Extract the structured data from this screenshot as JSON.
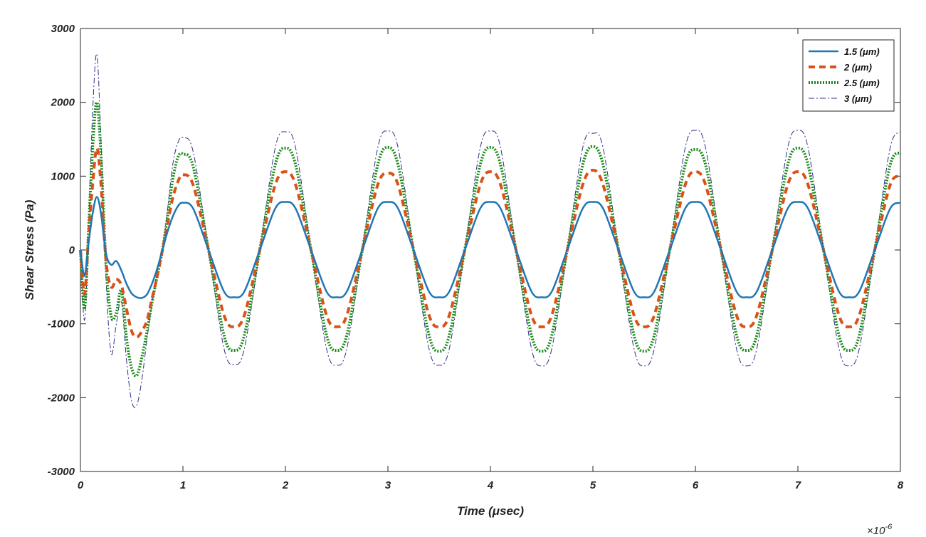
{
  "chart_data": {
    "type": "line",
    "title": "",
    "xlabel": "Time (μsec)",
    "ylabel": "Shear Stress (Pa)",
    "x_multiplier": "×10",
    "x_multiplier_exp": "-6",
    "xlim": [
      0,
      8
    ],
    "ylim": [
      -3000,
      3000
    ],
    "xticks": [
      "0",
      "1",
      "2",
      "3",
      "4",
      "5",
      "6",
      "7",
      "8"
    ],
    "yticks": [
      "3000",
      "2000",
      "1000",
      "0",
      "-1000",
      "-2000",
      "-3000"
    ],
    "grid": false,
    "legend_position": "top-right",
    "series": [
      {
        "name": "1.5 (μm)",
        "color": "#1f77b4",
        "style": "solid",
        "x": [
          0,
          0.04,
          0.08,
          0.12,
          0.16,
          0.2,
          0.25,
          0.3,
          0.35,
          0.4,
          0.45,
          0.5,
          0.55,
          0.6,
          0.65,
          0.7,
          0.75,
          0.8,
          0.85,
          0.9,
          0.95,
          1.0,
          1.1,
          1.25,
          1.4,
          1.5,
          1.6,
          1.75,
          1.9,
          2.0,
          2.1,
          2.25,
          2.4,
          2.5,
          2.6,
          2.75,
          2.9,
          3.0,
          3.1,
          3.25,
          3.4,
          3.5,
          3.6,
          3.75,
          3.9,
          4.0,
          4.1,
          4.25,
          4.4,
          4.5,
          4.6,
          4.75,
          4.9,
          5.0,
          5.1,
          5.25,
          5.4,
          5.5,
          5.6,
          5.75,
          5.9,
          6.0,
          6.1,
          6.25,
          6.4,
          6.5,
          6.6,
          6.75,
          6.9,
          7.0,
          7.1,
          7.25,
          7.4,
          7.5,
          7.6,
          7.75,
          7.9,
          8.0
        ],
        "y": [
          0,
          -350,
          100,
          500,
          720,
          500,
          -50,
          -200,
          -150,
          -280,
          -460,
          -590,
          -640,
          -650,
          -600,
          -450,
          -250,
          0,
          250,
          450,
          590,
          640,
          560,
          0,
          -560,
          -640,
          -560,
          0,
          560,
          650,
          560,
          0,
          -560,
          -640,
          -560,
          0,
          560,
          650,
          560,
          0,
          -560,
          -640,
          -560,
          0,
          560,
          650,
          560,
          0,
          -560,
          -640,
          -560,
          0,
          560,
          650,
          560,
          0,
          -560,
          -640,
          -560,
          0,
          560,
          650,
          560,
          0,
          -560,
          -640,
          -560,
          0,
          560,
          650,
          560,
          0,
          -560,
          -640,
          -560,
          0,
          560,
          640
        ]
      },
      {
        "name": "2 (μm)",
        "color": "#d95319",
        "style": "dashed",
        "x": [
          0,
          0.04,
          0.08,
          0.12,
          0.16,
          0.2,
          0.25,
          0.3,
          0.35,
          0.4,
          0.45,
          0.5,
          0.55,
          0.6,
          0.65,
          0.7,
          0.75,
          0.8,
          0.85,
          0.9,
          0.95,
          1.0,
          1.1,
          1.25,
          1.4,
          1.5,
          1.6,
          1.75,
          1.9,
          2.0,
          2.1,
          2.25,
          2.4,
          2.5,
          2.6,
          2.75,
          2.9,
          3.0,
          3.1,
          3.25,
          3.4,
          3.5,
          3.6,
          3.75,
          3.9,
          4.0,
          4.1,
          4.25,
          4.4,
          4.5,
          4.6,
          4.75,
          4.9,
          5.0,
          5.1,
          5.25,
          5.4,
          5.5,
          5.6,
          5.75,
          5.9,
          6.0,
          6.1,
          6.25,
          6.4,
          6.5,
          6.6,
          6.75,
          6.9,
          7.0,
          7.1,
          7.25,
          7.4,
          7.5,
          7.6,
          7.75,
          7.9,
          8.0
        ],
        "y": [
          0,
          -600,
          200,
          900,
          1380,
          900,
          -150,
          -500,
          -400,
          -480,
          -800,
          -1100,
          -1180,
          -1100,
          -950,
          -650,
          -350,
          0,
          350,
          700,
          920,
          1020,
          880,
          0,
          -880,
          -1040,
          -880,
          0,
          880,
          1060,
          880,
          0,
          -880,
          -1040,
          -880,
          0,
          880,
          1040,
          880,
          0,
          -880,
          -1040,
          -880,
          0,
          880,
          1060,
          880,
          0,
          -880,
          -1040,
          -880,
          0,
          880,
          1080,
          880,
          0,
          -880,
          -1040,
          -880,
          0,
          880,
          1060,
          880,
          0,
          -880,
          -1040,
          -880,
          0,
          880,
          1060,
          880,
          0,
          -880,
          -1040,
          -880,
          0,
          880,
          1000
        ]
      },
      {
        "name": "2.5 (μm)",
        "color": "#1a8a1a",
        "style": "dotted",
        "x": [
          0,
          0.04,
          0.08,
          0.12,
          0.16,
          0.2,
          0.25,
          0.3,
          0.35,
          0.4,
          0.45,
          0.5,
          0.55,
          0.6,
          0.65,
          0.7,
          0.75,
          0.8,
          0.85,
          0.9,
          0.95,
          1.0,
          1.1,
          1.25,
          1.4,
          1.5,
          1.6,
          1.75,
          1.9,
          2.0,
          2.1,
          2.25,
          2.4,
          2.5,
          2.6,
          2.75,
          2.9,
          3.0,
          3.1,
          3.25,
          3.4,
          3.5,
          3.6,
          3.75,
          3.9,
          4.0,
          4.1,
          4.25,
          4.4,
          4.5,
          4.6,
          4.75,
          4.9,
          5.0,
          5.1,
          5.25,
          5.4,
          5.5,
          5.6,
          5.75,
          5.9,
          6.0,
          6.1,
          6.25,
          6.4,
          6.5,
          6.6,
          6.75,
          6.9,
          7.0,
          7.1,
          7.25,
          7.4,
          7.5,
          7.6,
          7.75,
          7.9,
          8.0
        ],
        "y": [
          0,
          -800,
          300,
          1400,
          2000,
          1300,
          -200,
          -900,
          -850,
          -550,
          -1200,
          -1600,
          -1700,
          -1450,
          -1100,
          -700,
          -350,
          0,
          450,
          950,
          1250,
          1300,
          1130,
          0,
          -1150,
          -1360,
          -1150,
          0,
          1150,
          1380,
          1150,
          0,
          -1150,
          -1360,
          -1150,
          0,
          1150,
          1390,
          1150,
          0,
          -1150,
          -1370,
          -1150,
          0,
          1150,
          1390,
          1150,
          0,
          -1150,
          -1370,
          -1150,
          0,
          1150,
          1400,
          1150,
          0,
          -1150,
          -1370,
          -1150,
          0,
          1150,
          1360,
          1150,
          0,
          -1150,
          -1360,
          -1150,
          0,
          1150,
          1380,
          1150,
          0,
          -1150,
          -1360,
          -1150,
          0,
          1150,
          1320
        ]
      },
      {
        "name": "3 (μm)",
        "color": "#2b2f8a",
        "style": "dashdot",
        "x": [
          0,
          0.04,
          0.08,
          0.12,
          0.16,
          0.2,
          0.25,
          0.3,
          0.35,
          0.4,
          0.45,
          0.5,
          0.55,
          0.6,
          0.65,
          0.7,
          0.75,
          0.8,
          0.85,
          0.9,
          0.95,
          1.0,
          1.1,
          1.25,
          1.4,
          1.5,
          1.6,
          1.75,
          1.9,
          2.0,
          2.1,
          2.25,
          2.4,
          2.5,
          2.6,
          2.75,
          2.9,
          3.0,
          3.1,
          3.25,
          3.4,
          3.5,
          3.6,
          3.75,
          3.9,
          4.0,
          4.1,
          4.25,
          4.4,
          4.5,
          4.6,
          4.75,
          4.9,
          5.0,
          5.1,
          5.25,
          5.4,
          5.5,
          5.6,
          5.75,
          5.9,
          6.0,
          6.1,
          6.25,
          6.4,
          6.5,
          6.6,
          6.75,
          6.9,
          7.0,
          7.1,
          7.25,
          7.4,
          7.5,
          7.6,
          7.75,
          7.9,
          8.0
        ],
        "y": [
          0,
          -950,
          350,
          1900,
          2650,
          1500,
          -400,
          -1400,
          -1000,
          -700,
          -1500,
          -2050,
          -2100,
          -1750,
          -1200,
          -700,
          -300,
          0,
          550,
          1150,
          1450,
          1520,
          1330,
          0,
          -1330,
          -1550,
          -1330,
          0,
          1380,
          1600,
          1380,
          0,
          -1330,
          -1560,
          -1330,
          0,
          1380,
          1610,
          1380,
          0,
          -1330,
          -1560,
          -1330,
          0,
          1380,
          1610,
          1380,
          0,
          -1330,
          -1570,
          -1330,
          0,
          1380,
          1580,
          1380,
          0,
          -1330,
          -1570,
          -1330,
          0,
          1380,
          1620,
          1380,
          0,
          -1330,
          -1570,
          -1330,
          0,
          1380,
          1620,
          1380,
          0,
          -1330,
          -1570,
          -1330,
          0,
          1380,
          1600
        ]
      }
    ]
  }
}
